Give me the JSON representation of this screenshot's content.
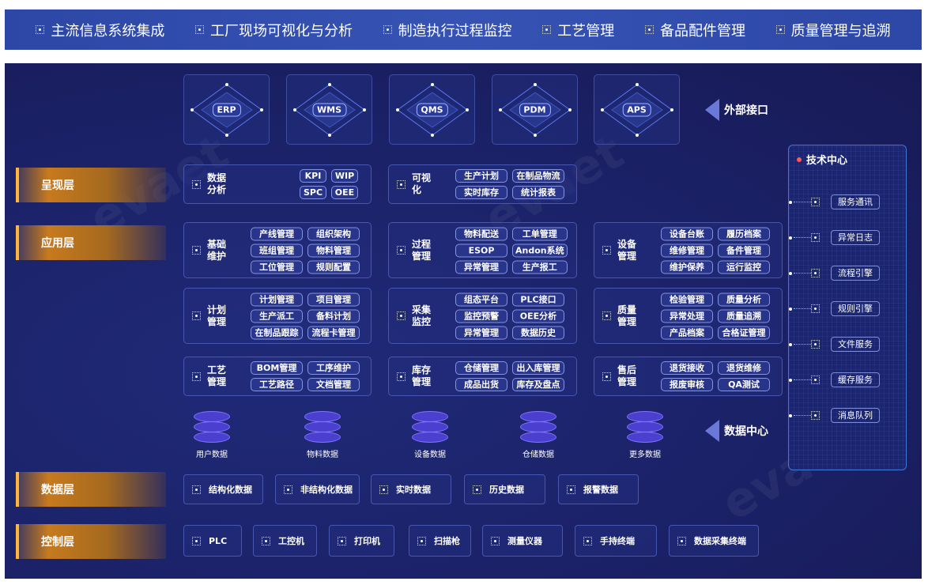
{
  "top_nav": [
    "主流信息系统集成",
    "工厂现场可视化与分析",
    "制造执行过程监控",
    "工艺管理",
    "备品配件管理",
    "质量管理与追溯"
  ],
  "external": {
    "label": "外部接口",
    "systems": [
      "ERP",
      "WMS",
      "QMS",
      "PDM",
      "APS"
    ]
  },
  "layers": {
    "presentation": "呈现层",
    "application": "应用层",
    "data": "数据层",
    "control": "控制层"
  },
  "presentation": [
    {
      "title": "数据分析",
      "tags": [
        "KPI",
        "WIP",
        "SPC",
        "OEE"
      ]
    },
    {
      "title": "可视化",
      "tags": [
        "生产计划",
        "在制品物流",
        "实时库存",
        "统计报表"
      ]
    }
  ],
  "application": [
    {
      "title": "基础维护",
      "tags": [
        "产线管理",
        "组织架构",
        "班组管理",
        "物料管理",
        "工位管理",
        "规则配置"
      ]
    },
    {
      "title": "过程管理",
      "tags": [
        "物料配送",
        "工单管理",
        "ESOP",
        "Andon系统",
        "异常管理",
        "生产报工"
      ]
    },
    {
      "title": "设备管理",
      "tags": [
        "设备台账",
        "履历档案",
        "维修管理",
        "备件管理",
        "维护保养",
        "运行监控"
      ]
    },
    {
      "title": "计划管理",
      "tags": [
        "计划管理",
        "项目管理",
        "生产派工",
        "备料计划",
        "在制品跟踪",
        "流程卡管理"
      ]
    },
    {
      "title": "采集监控",
      "tags": [
        "组态平台",
        "PLC接口",
        "监控预警",
        "OEE分析",
        "异常管理",
        "数据历史"
      ]
    },
    {
      "title": "质量管理",
      "tags": [
        "检验管理",
        "质量分析",
        "异常处理",
        "质量追溯",
        "产品档案",
        "合格证管理"
      ]
    },
    {
      "title": "工艺管理",
      "tags": [
        "BOM管理",
        "工序维护",
        "工艺路径",
        "文档管理"
      ]
    },
    {
      "title": "库存管理",
      "tags": [
        "仓储管理",
        "出入库管理",
        "成品出货",
        "库存及盘点"
      ]
    },
    {
      "title": "售后管理",
      "tags": [
        "退货接收",
        "退货维修",
        "报废审核",
        "QA测试"
      ]
    }
  ],
  "data_center": {
    "label": "数据中心",
    "stores": [
      "用户数据",
      "物料数据",
      "设备数据",
      "仓储数据",
      "更多数据"
    ]
  },
  "data_layer": [
    "结构化数据",
    "非结构化数据",
    "实时数据",
    "历史数据",
    "报警数据"
  ],
  "control_layer": [
    "PLC",
    "工控机",
    "打印机",
    "扫描枪",
    "测量仪器",
    "手持终端",
    "数据采集终端"
  ],
  "tech_center": {
    "title": "技术中心",
    "services": [
      "服务通讯",
      "异常日志",
      "流程引擎",
      "规则引擎",
      "文件服务",
      "缓存服务",
      "消息队列"
    ]
  },
  "colors": {
    "top_bar": "#2f4aa8",
    "background": "#1b2066",
    "layer_accent": "#ffb63a",
    "tag_border": "#8494e0"
  }
}
